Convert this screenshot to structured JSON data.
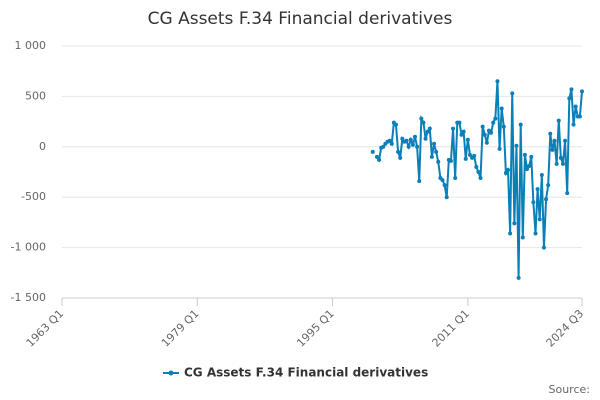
{
  "chart_data": {
    "type": "line",
    "title": "CG Assets F.34 Financial derivatives",
    "source_label": "Source:",
    "x": [
      "1999 Q4",
      "2000 Q1",
      "2000 Q2",
      "2000 Q3",
      "2000 Q4",
      "2001 Q1",
      "2001 Q2",
      "2001 Q3",
      "2001 Q4",
      "2002 Q1",
      "2002 Q2",
      "2002 Q3",
      "2002 Q4",
      "2003 Q1",
      "2003 Q2",
      "2003 Q3",
      "2003 Q4",
      "2004 Q1",
      "2004 Q2",
      "2004 Q3",
      "2004 Q4",
      "2005 Q1",
      "2005 Q2",
      "2005 Q3",
      "2005 Q4",
      "2006 Q1",
      "2006 Q2",
      "2006 Q3",
      "2006 Q4",
      "2007 Q1",
      "2007 Q2",
      "2007 Q3",
      "2007 Q4",
      "2008 Q1",
      "2008 Q2",
      "2008 Q3",
      "2008 Q4",
      "2009 Q1",
      "2009 Q2",
      "2009 Q3",
      "2009 Q4",
      "2010 Q1",
      "2010 Q2",
      "2010 Q3",
      "2010 Q4",
      "2011 Q1",
      "2011 Q2",
      "2011 Q3",
      "2011 Q4",
      "2012 Q1",
      "2012 Q2",
      "2012 Q3",
      "2012 Q4",
      "2013 Q1",
      "2013 Q2",
      "2013 Q3",
      "2013 Q4",
      "2014 Q1",
      "2014 Q2",
      "2014 Q3",
      "2014 Q4",
      "2015 Q1",
      "2015 Q2",
      "2015 Q3",
      "2015 Q4",
      "2016 Q1",
      "2016 Q2",
      "2016 Q3",
      "2016 Q4",
      "2017 Q1",
      "2017 Q2",
      "2017 Q3",
      "2017 Q4",
      "2018 Q1",
      "2018 Q2",
      "2018 Q3",
      "2018 Q4",
      "2019 Q1",
      "2019 Q2",
      "2019 Q3",
      "2019 Q4",
      "2020 Q1",
      "2020 Q2",
      "2020 Q3",
      "2020 Q4",
      "2021 Q1",
      "2021 Q2",
      "2021 Q3",
      "2021 Q4",
      "2022 Q1",
      "2022 Q2",
      "2022 Q3",
      "2022 Q4",
      "2023 Q1",
      "2023 Q2",
      "2023 Q3",
      "2023 Q4",
      "2024 Q1",
      "2024 Q2",
      "2024 Q3"
    ],
    "series": [
      {
        "name": "CG Assets F.34 Financial derivatives",
        "color": "#0a7fb8",
        "values": [
          -50,
          null,
          -100,
          -130,
          -10,
          0,
          30,
          50,
          60,
          30,
          240,
          220,
          -50,
          -110,
          80,
          50,
          60,
          0,
          70,
          20,
          100,
          0,
          -340,
          280,
          240,
          80,
          150,
          180,
          -100,
          30,
          -50,
          -150,
          -310,
          -330,
          -380,
          -500,
          -130,
          -140,
          180,
          -310,
          240,
          240,
          120,
          150,
          -120,
          70,
          -80,
          -110,
          -90,
          -200,
          -250,
          -310,
          200,
          120,
          40,
          160,
          140,
          240,
          280,
          650,
          -20,
          380,
          200,
          -260,
          -230,
          -860,
          530,
          -760,
          10,
          -1300,
          220,
          -900,
          -80,
          -220,
          -190,
          -100,
          -550,
          -860,
          -420,
          -720,
          -280,
          -1000,
          -520,
          -380,
          130,
          -30,
          60,
          -170,
          260,
          -110,
          -170,
          60,
          -460,
          480,
          570,
          220,
          400,
          300,
          300,
          550
        ]
      }
    ],
    "xlim": [
      "1963 Q1",
      "2024 Q3"
    ],
    "xticks": [
      "1963 Q1",
      "1979 Q1",
      "1995 Q1",
      "2011 Q1",
      "2024 Q3"
    ],
    "ylim": [
      -1500,
      1000
    ],
    "yticks": [
      {
        "value": -1500,
        "label": "-1 500"
      },
      {
        "value": -1000,
        "label": "-1 000"
      },
      -500,
      0,
      500,
      {
        "value": 1000,
        "label": "1 000"
      }
    ],
    "grid": true,
    "legend": "bottom"
  }
}
